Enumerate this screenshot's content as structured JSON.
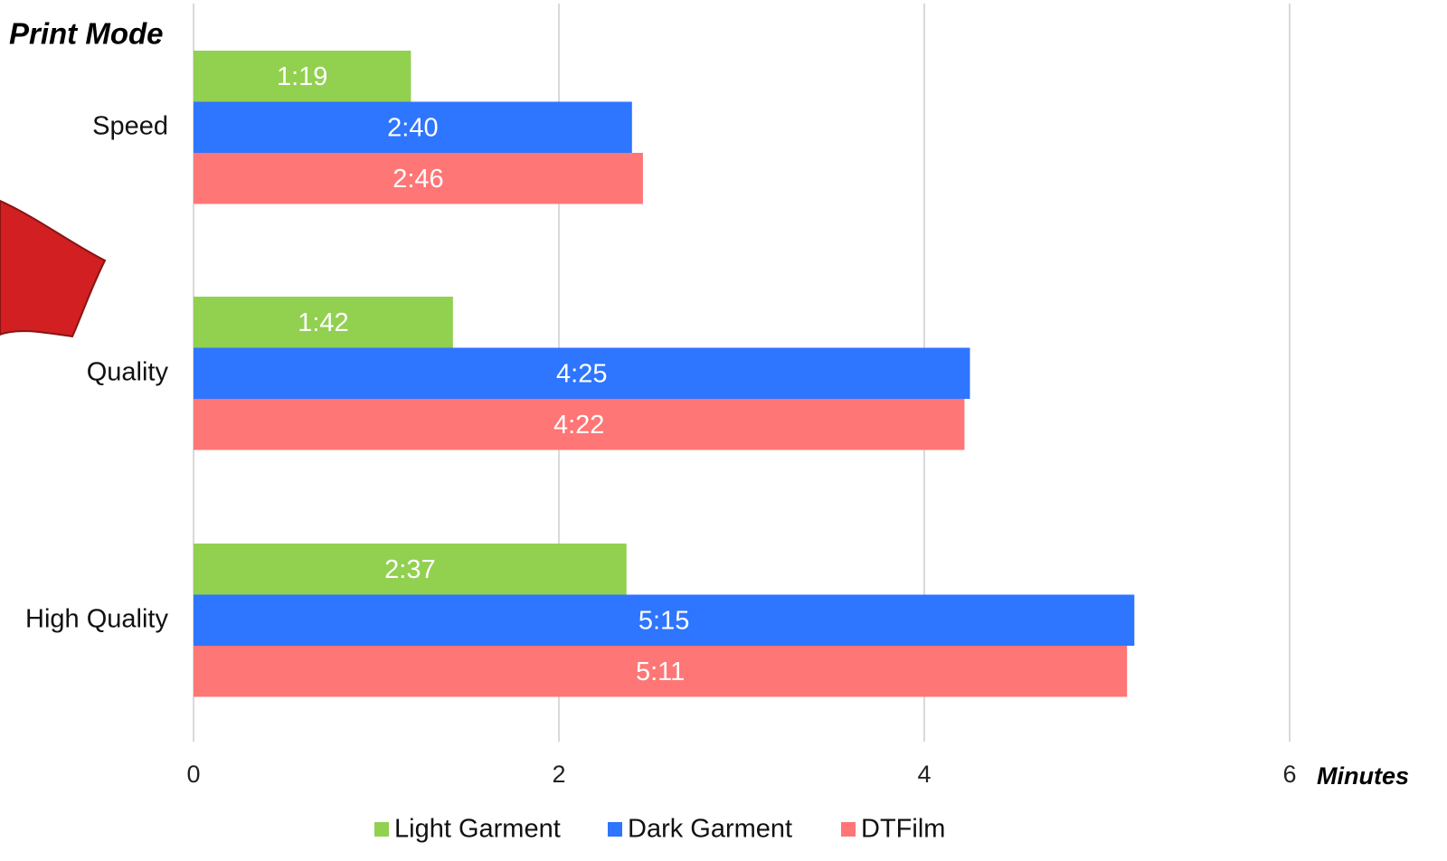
{
  "chart_data": {
    "type": "hbar",
    "y_axis_title": "Print Mode",
    "x_axis_title": "Minutes",
    "categories": [
      "Speed",
      "Quality",
      "High Quality"
    ],
    "series": [
      {
        "name": "Light Garment",
        "color": "#92d050",
        "values": [
          1.19,
          1.42,
          2.37
        ],
        "value_labels": [
          "1:19",
          "1:42",
          "2:37"
        ]
      },
      {
        "name": "Dark Garment",
        "color": "#2e75ff",
        "values": [
          2.4,
          4.25,
          5.15
        ],
        "value_labels": [
          "2:40",
          "4:25",
          "5:15"
        ]
      },
      {
        "name": "DTFilm",
        "color": "#ff7676",
        "values": [
          2.46,
          4.22,
          5.11
        ],
        "value_labels": [
          "2:46",
          "4:22",
          "5:11"
        ]
      }
    ],
    "xlim": [
      0,
      6
    ],
    "xticks": [
      0,
      2,
      4,
      6
    ],
    "grid": true,
    "legend": "bottom"
  }
}
